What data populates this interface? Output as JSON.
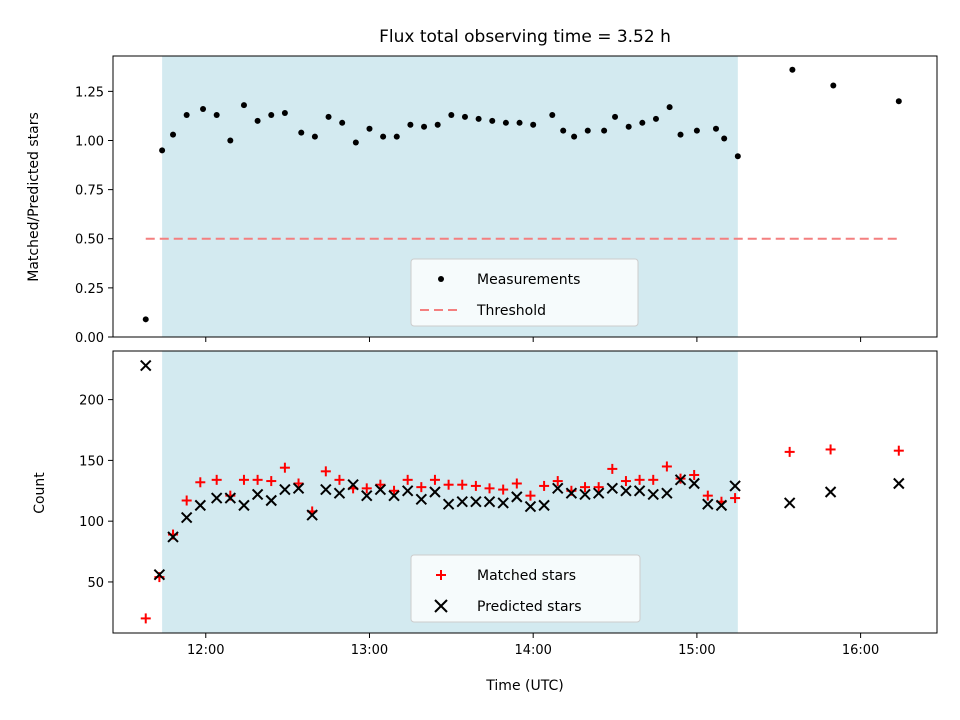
{
  "chart_data": [
    {
      "type": "scatter",
      "title": "Flux total observing time = 3.52 h",
      "xlabel": "",
      "ylabel": "Matched/Predicted stars",
      "xlim": [
        "11:26",
        "16:28"
      ],
      "ylim": [
        0,
        1.43
      ],
      "yticks": [
        "0.00",
        "0.25",
        "0.50",
        "0.75",
        "1.00",
        "1.25"
      ],
      "shaded_region": [
        "11:44",
        "15:15"
      ],
      "threshold": 0.5,
      "legend": {
        "placement": "lower-center",
        "entries": [
          "Measurements",
          "Threshold"
        ]
      },
      "series": [
        {
          "name": "Measurements",
          "marker": "dot",
          "color": "#000000",
          "points": [
            [
              "11:38",
              0.09
            ],
            [
              "11:44",
              0.95
            ],
            [
              "11:48",
              1.03
            ],
            [
              "11:53",
              1.13
            ],
            [
              "11:59",
              1.16
            ],
            [
              "12:04",
              1.13
            ],
            [
              "12:09",
              1.0
            ],
            [
              "12:14",
              1.18
            ],
            [
              "12:19",
              1.1
            ],
            [
              "12:24",
              1.13
            ],
            [
              "12:29",
              1.14
            ],
            [
              "12:35",
              1.04
            ],
            [
              "12:40",
              1.02
            ],
            [
              "12:45",
              1.12
            ],
            [
              "12:50",
              1.09
            ],
            [
              "12:55",
              0.99
            ],
            [
              "13:00",
              1.06
            ],
            [
              "13:05",
              1.02
            ],
            [
              "13:10",
              1.02
            ],
            [
              "13:15",
              1.08
            ],
            [
              "13:20",
              1.07
            ],
            [
              "13:25",
              1.08
            ],
            [
              "13:30",
              1.13
            ],
            [
              "13:35",
              1.12
            ],
            [
              "13:40",
              1.11
            ],
            [
              "13:45",
              1.1
            ],
            [
              "13:50",
              1.09
            ],
            [
              "13:55",
              1.09
            ],
            [
              "14:00",
              1.08
            ],
            [
              "14:07",
              1.13
            ],
            [
              "14:11",
              1.05
            ],
            [
              "14:15",
              1.02
            ],
            [
              "14:20",
              1.05
            ],
            [
              "14:26",
              1.05
            ],
            [
              "14:30",
              1.12
            ],
            [
              "14:35",
              1.07
            ],
            [
              "14:40",
              1.09
            ],
            [
              "14:45",
              1.11
            ],
            [
              "14:50",
              1.17
            ],
            [
              "14:54",
              1.03
            ],
            [
              "15:00",
              1.05
            ],
            [
              "15:07",
              1.06
            ],
            [
              "15:10",
              1.01
            ],
            [
              "15:15",
              0.92
            ],
            [
              "15:35",
              1.36
            ],
            [
              "15:50",
              1.28
            ],
            [
              "16:14",
              1.2
            ]
          ]
        }
      ]
    },
    {
      "type": "scatter",
      "title": "",
      "xlabel": "Time (UTC)",
      "ylabel": "Count",
      "xlim": [
        "11:26",
        "16:28"
      ],
      "ylim": [
        8,
        240
      ],
      "xticks": [
        "12:00",
        "13:00",
        "14:00",
        "15:00",
        "16:00"
      ],
      "yticks": [
        "50",
        "100",
        "150",
        "200"
      ],
      "shaded_region": [
        "11:44",
        "15:15"
      ],
      "legend": {
        "placement": "lower-center",
        "entries": [
          "Matched stars",
          "Predicted stars"
        ]
      },
      "series": [
        {
          "name": "Matched stars",
          "marker": "plus",
          "color": "#ff0000",
          "points": [
            [
              "11:38",
              20
            ],
            [
              "11:43",
              54
            ],
            [
              "11:48",
              89
            ],
            [
              "11:53",
              117
            ],
            [
              "11:58",
              132
            ],
            [
              "12:04",
              134
            ],
            [
              "12:09",
              121
            ],
            [
              "12:14",
              134
            ],
            [
              "12:19",
              134
            ],
            [
              "12:24",
              133
            ],
            [
              "12:29",
              144
            ],
            [
              "12:34",
              131
            ],
            [
              "12:39",
              108
            ],
            [
              "12:44",
              141
            ],
            [
              "12:49",
              134
            ],
            [
              "12:54",
              127
            ],
            [
              "12:59",
              127
            ],
            [
              "13:04",
              130
            ],
            [
              "13:09",
              125
            ],
            [
              "13:14",
              134
            ],
            [
              "13:19",
              128
            ],
            [
              "13:24",
              134
            ],
            [
              "13:29",
              130
            ],
            [
              "13:34",
              130
            ],
            [
              "13:39",
              129
            ],
            [
              "13:44",
              127
            ],
            [
              "13:49",
              126
            ],
            [
              "13:54",
              131
            ],
            [
              "13:59",
              121
            ],
            [
              "14:04",
              129
            ],
            [
              "14:09",
              133
            ],
            [
              "14:14",
              125
            ],
            [
              "14:19",
              128
            ],
            [
              "14:24",
              128
            ],
            [
              "14:29",
              143
            ],
            [
              "14:34",
              133
            ],
            [
              "14:39",
              134
            ],
            [
              "14:44",
              134
            ],
            [
              "14:49",
              145
            ],
            [
              "14:54",
              135
            ],
            [
              "14:59",
              138
            ],
            [
              "15:04",
              121
            ],
            [
              "15:09",
              116
            ],
            [
              "15:14",
              119
            ],
            [
              "15:34",
              157
            ],
            [
              "15:49",
              159
            ],
            [
              "16:14",
              158
            ]
          ]
        },
        {
          "name": "Predicted stars",
          "marker": "x",
          "color": "#000000",
          "points": [
            [
              "11:38",
              228
            ],
            [
              "11:43",
              56
            ],
            [
              "11:48",
              87
            ],
            [
              "11:53",
              103
            ],
            [
              "11:58",
              113
            ],
            [
              "12:04",
              119
            ],
            [
              "12:09",
              119
            ],
            [
              "12:14",
              113
            ],
            [
              "12:19",
              122
            ],
            [
              "12:24",
              117
            ],
            [
              "12:29",
              126
            ],
            [
              "12:34",
              127
            ],
            [
              "12:39",
              105
            ],
            [
              "12:44",
              126
            ],
            [
              "12:49",
              123
            ],
            [
              "12:54",
              130
            ],
            [
              "12:59",
              121
            ],
            [
              "13:04",
              126
            ],
            [
              "13:09",
              121
            ],
            [
              "13:14",
              125
            ],
            [
              "13:19",
              118
            ],
            [
              "13:24",
              124
            ],
            [
              "13:29",
              114
            ],
            [
              "13:34",
              116
            ],
            [
              "13:39",
              116
            ],
            [
              "13:44",
              116
            ],
            [
              "13:49",
              115
            ],
            [
              "13:54",
              120
            ],
            [
              "13:59",
              112
            ],
            [
              "14:04",
              113
            ],
            [
              "14:09",
              127
            ],
            [
              "14:14",
              123
            ],
            [
              "14:19",
              122
            ],
            [
              "14:24",
              123
            ],
            [
              "14:29",
              127
            ],
            [
              "14:34",
              125
            ],
            [
              "14:39",
              125
            ],
            [
              "14:44",
              122
            ],
            [
              "14:49",
              123
            ],
            [
              "14:54",
              134
            ],
            [
              "14:59",
              131
            ],
            [
              "15:04",
              114
            ],
            [
              "15:09",
              113
            ],
            [
              "15:14",
              129
            ],
            [
              "15:34",
              115
            ],
            [
              "15:49",
              124
            ],
            [
              "16:14",
              131
            ]
          ]
        }
      ]
    }
  ],
  "colors": {
    "shade": "#d3eaf0",
    "threshold": "#f47f7f",
    "matched": "#ff0000",
    "predicted": "#000000"
  }
}
